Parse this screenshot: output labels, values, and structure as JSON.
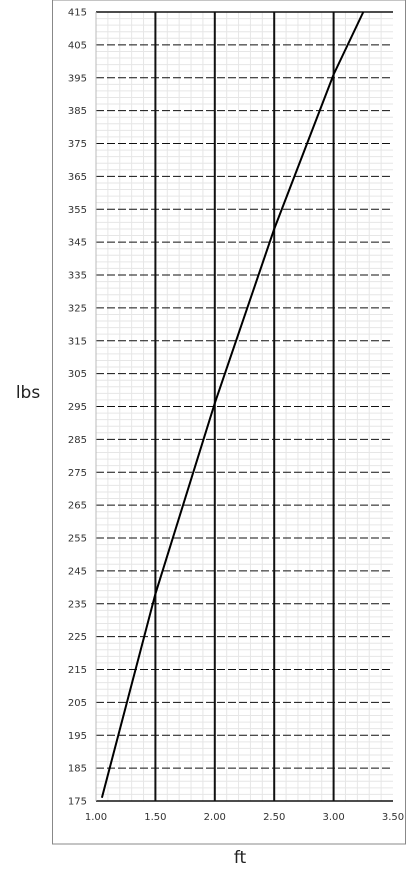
{
  "chart_data": {
    "type": "line",
    "title": "",
    "xlabel": "ft",
    "ylabel": "lbs",
    "xlim": [
      1.0,
      3.5
    ],
    "ylim": [
      175,
      415
    ],
    "grid": true,
    "legend": "none",
    "x_ticks": [
      "1.00",
      "1.50",
      "2.00",
      "2.50",
      "3.00",
      "3.50"
    ],
    "y_ticks": [
      "175",
      "185",
      "195",
      "205",
      "215",
      "225",
      "235",
      "245",
      "255",
      "265",
      "275",
      "285",
      "295",
      "305",
      "315",
      "325",
      "335",
      "345",
      "355",
      "365",
      "375",
      "385",
      "395",
      "405",
      "415"
    ],
    "series": [
      {
        "x": [
          1.05,
          1.5,
          2.0,
          2.5,
          3.0,
          3.25
        ],
        "y": [
          176,
          238,
          296,
          349,
          396,
          415
        ]
      }
    ],
    "colors": {
      "line": "#000000",
      "major_grid": "#111111",
      "minor_grid": "#e6e6e6",
      "frame": "#888888"
    }
  }
}
